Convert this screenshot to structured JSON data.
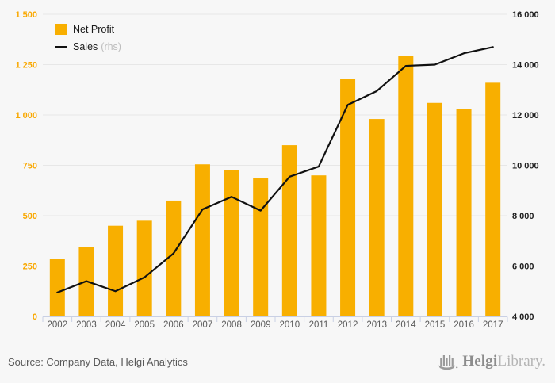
{
  "chart_data": {
    "type": "bar+line",
    "categories": [
      "2002",
      "2003",
      "2004",
      "2005",
      "2006",
      "2007",
      "2008",
      "2009",
      "2010",
      "2011",
      "2012",
      "2013",
      "2014",
      "2015",
      "2016",
      "2017"
    ],
    "series": [
      {
        "name": "Net Profit",
        "type": "bar",
        "axis": "left",
        "color": "#f8af00",
        "values": [
          285,
          345,
          450,
          475,
          575,
          755,
          725,
          685,
          850,
          700,
          1180,
          980,
          1295,
          1060,
          1030,
          1160
        ]
      },
      {
        "name": "Sales",
        "type": "line",
        "axis": "right",
        "color": "#111111",
        "values": [
          4950,
          5400,
          5000,
          5550,
          6500,
          8250,
          8750,
          8200,
          9550,
          9950,
          12400,
          12950,
          13950,
          14000,
          14450,
          14700
        ]
      }
    ],
    "left_axis": {
      "min": 0,
      "max": 1500,
      "step": 250,
      "labels": [
        "0",
        "250",
        "500",
        "750",
        "1 000",
        "1 250",
        "1 500"
      ],
      "color": "#f9a800"
    },
    "right_axis": {
      "min": 4000,
      "max": 16000,
      "step": 2000,
      "labels": [
        "4 000",
        "6 000",
        "8 000",
        "10 000",
        "12 000",
        "14 000",
        "16 000"
      ],
      "color": "#1f1f1f"
    },
    "legend": [
      {
        "label": "Net Profit",
        "suffix": ""
      },
      {
        "label": "Sales",
        "suffix": "(rhs)"
      }
    ],
    "grid": true,
    "legend_position": "top-left"
  },
  "footer": {
    "source": "Source: Company Data, Helgi Analytics",
    "logo": {
      "brand_bold": "Helgi",
      "brand_light": "Library."
    }
  }
}
